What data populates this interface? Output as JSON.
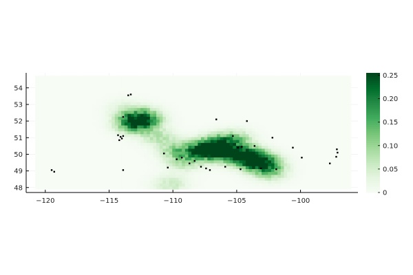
{
  "chart_data": {
    "type": "heatmap",
    "title": "",
    "xlabel": "",
    "ylabel": "",
    "xlim": [
      -121.5,
      -95.5
    ],
    "ylim": [
      47.7,
      54.9
    ],
    "x_ticks": [
      -120,
      -115,
      -110,
      -105,
      -100
    ],
    "x_tick_labels": [
      "−120",
      "−115",
      "−110",
      "−105",
      "−100"
    ],
    "y_ticks": [
      48,
      49,
      50,
      51,
      52,
      53,
      54
    ],
    "y_tick_labels": [
      "48",
      "49",
      "50",
      "51",
      "52",
      "53",
      "54"
    ],
    "grid": true,
    "colorbar": {
      "min": 0,
      "max": 0.255,
      "ticks": [
        0,
        0.05,
        0.1,
        0.15,
        0.2,
        0.25
      ],
      "tick_labels": [
        "0",
        "0.05",
        "0.10",
        "0.15",
        "0.20",
        "0.25"
      ],
      "colormap": "Greens",
      "low_color": "#f7fcf5",
      "high_color": "#00441b"
    },
    "field_extent": {
      "lon": [
        -120.8,
        -96.2
      ],
      "lat": [
        47.9,
        54.6
      ]
    },
    "hotspots": [
      {
        "lon": -113.2,
        "lat": 51.8,
        "value": 0.22
      },
      {
        "lon": -112.3,
        "lat": 52.1,
        "value": 0.18
      },
      {
        "lon": -107.8,
        "lat": 50.1,
        "value": 0.21
      },
      {
        "lon": -106.8,
        "lat": 50.5,
        "value": 0.19
      },
      {
        "lon": -106.0,
        "lat": 50.0,
        "value": 0.17
      },
      {
        "lon": -104.6,
        "lat": 49.9,
        "value": 0.16
      },
      {
        "lon": -103.8,
        "lat": 49.6,
        "value": 0.2
      },
      {
        "lon": -103.0,
        "lat": 49.4,
        "value": 0.15
      },
      {
        "lon": -102.5,
        "lat": 48.9,
        "value": 0.1
      },
      {
        "lon": -105.3,
        "lat": 50.8,
        "value": 0.12
      },
      {
        "lon": -109.8,
        "lat": 50.2,
        "value": 0.1
      },
      {
        "lon": -111.3,
        "lat": 51.0,
        "value": 0.07
      },
      {
        "lon": -113.8,
        "lat": 52.6,
        "value": 0.05
      },
      {
        "lon": -110.3,
        "lat": 48.1,
        "value": 0.06
      },
      {
        "lon": -109.3,
        "lat": 49.5,
        "value": 0.08
      }
    ],
    "points": [
      {
        "lon": -119.5,
        "lat": 49.05
      },
      {
        "lon": -119.3,
        "lat": 48.95
      },
      {
        "lon": -114.3,
        "lat": 51.15
      },
      {
        "lon": -114.1,
        "lat": 51.05
      },
      {
        "lon": -114.0,
        "lat": 50.95
      },
      {
        "lon": -113.9,
        "lat": 51.1
      },
      {
        "lon": -114.2,
        "lat": 50.85
      },
      {
        "lon": -113.9,
        "lat": 52.25
      },
      {
        "lon": -113.5,
        "lat": 53.55
      },
      {
        "lon": -113.3,
        "lat": 53.6
      },
      {
        "lon": -113.9,
        "lat": 49.05
      },
      {
        "lon": -110.7,
        "lat": 50.05
      },
      {
        "lon": -110.4,
        "lat": 49.2
      },
      {
        "lon": -109.7,
        "lat": 49.7
      },
      {
        "lon": -109.3,
        "lat": 49.8
      },
      {
        "lon": -108.7,
        "lat": 49.45
      },
      {
        "lon": -108.3,
        "lat": 49.6
      },
      {
        "lon": -107.8,
        "lat": 49.25
      },
      {
        "lon": -107.4,
        "lat": 49.15
      },
      {
        "lon": -107.1,
        "lat": 49.05
      },
      {
        "lon": -106.6,
        "lat": 52.1
      },
      {
        "lon": -105.9,
        "lat": 49.25
      },
      {
        "lon": -105.3,
        "lat": 51.1
      },
      {
        "lon": -104.9,
        "lat": 50.4
      },
      {
        "lon": -104.7,
        "lat": 49.1
      },
      {
        "lon": -104.6,
        "lat": 50.45
      },
      {
        "lon": -104.2,
        "lat": 52.0
      },
      {
        "lon": -103.6,
        "lat": 50.5
      },
      {
        "lon": -103.1,
        "lat": 49.15
      },
      {
        "lon": -102.2,
        "lat": 51.0
      },
      {
        "lon": -101.9,
        "lat": 49.1
      },
      {
        "lon": -100.6,
        "lat": 50.4
      },
      {
        "lon": -99.9,
        "lat": 49.8
      },
      {
        "lon": -97.7,
        "lat": 49.45
      },
      {
        "lon": -97.15,
        "lat": 50.3
      },
      {
        "lon": -97.2,
        "lat": 49.85
      },
      {
        "lon": -97.1,
        "lat": 50.1
      }
    ]
  }
}
